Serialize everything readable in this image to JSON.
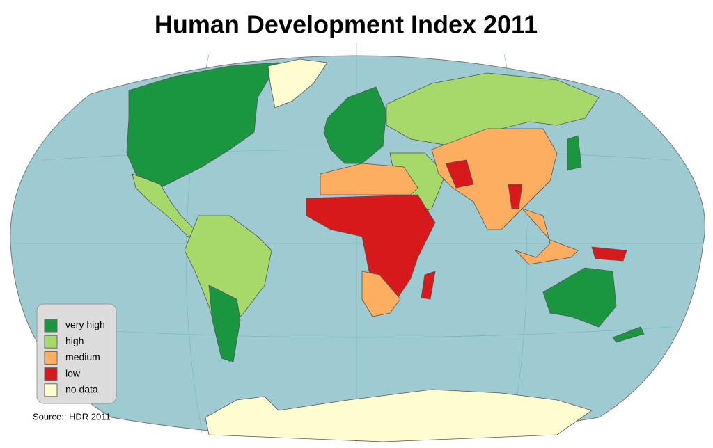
{
  "title": "Human Development Index 2011",
  "legend": [
    {
      "label": "very high",
      "color": "#1a9641"
    },
    {
      "label": "high",
      "color": "#a6d96a"
    },
    {
      "label": "medium",
      "color": "#fdae61"
    },
    {
      "label": "low",
      "color": "#d7191c"
    },
    {
      "label": "no data",
      "color": "#fffdd0"
    }
  ],
  "source": "Source:: HDR 2011"
}
